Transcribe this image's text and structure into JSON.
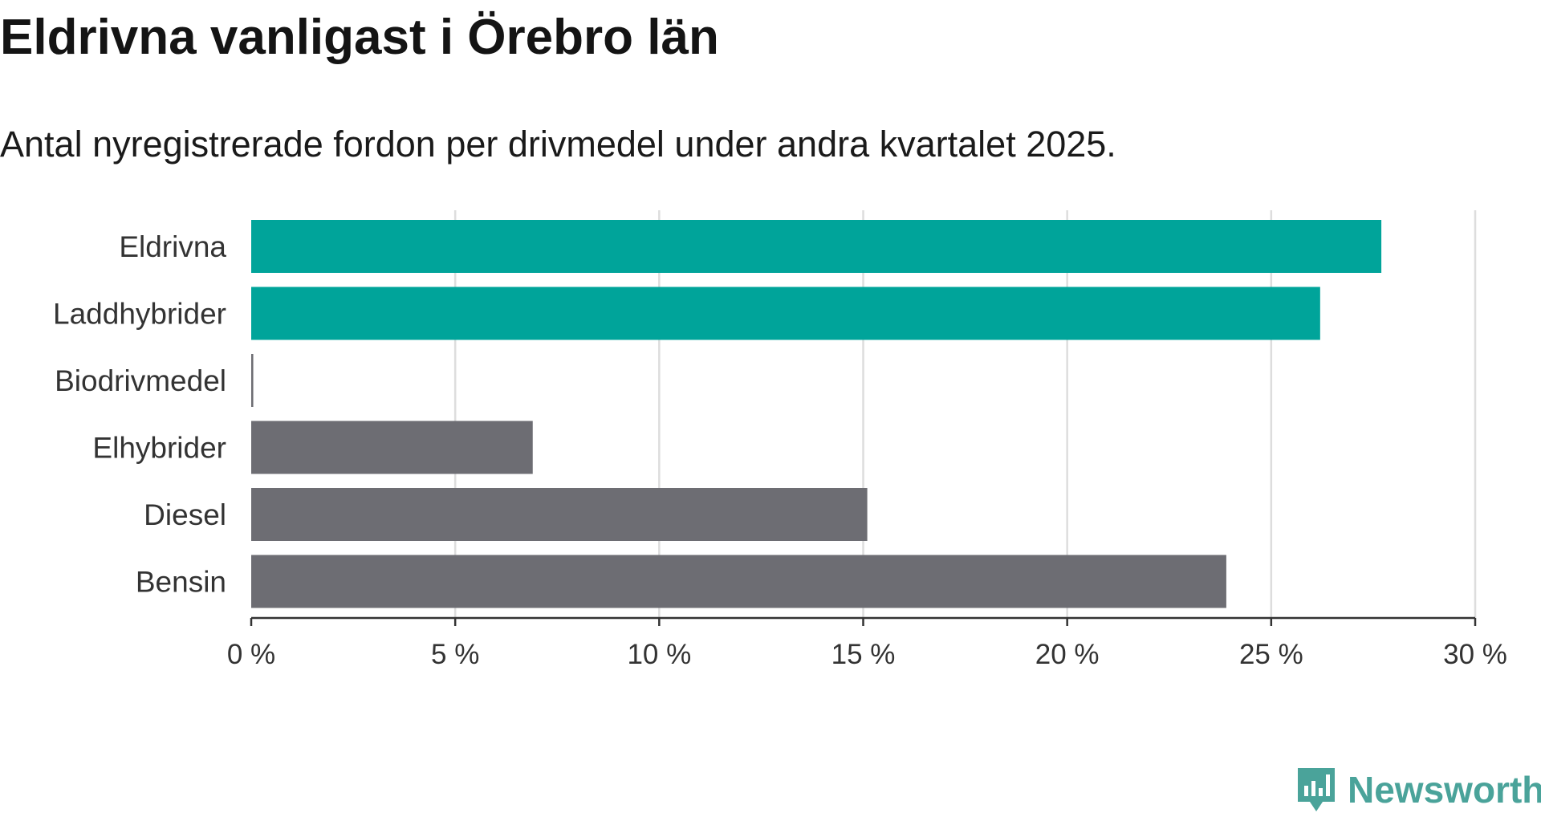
{
  "title": "Eldrivna vanligast i Örebro län",
  "subtitle": "Antal nyregistrerade fordon per drivmedel under andra kvartalet 2025.",
  "brand": {
    "name": "Newsworthy",
    "icon": "newsworthy-logo-icon",
    "color": "#4aa39a"
  },
  "chart_data": {
    "type": "bar",
    "orientation": "horizontal",
    "categories": [
      "Eldrivna",
      "Laddhybrider",
      "Biodrivmedel",
      "Elhybrider",
      "Diesel",
      "Bensin"
    ],
    "values": [
      27.7,
      26.2,
      0.05,
      6.9,
      15.1,
      23.9
    ],
    "highlighted": [
      true,
      true,
      false,
      false,
      false,
      false
    ],
    "colors": {
      "highlight": "#00a49a",
      "default": "#6d6d73"
    },
    "xlim": [
      0,
      30
    ],
    "xticks": [
      0,
      5,
      10,
      15,
      20,
      25,
      30
    ],
    "xtick_labels": [
      "0 %",
      "5 %",
      "10 %",
      "15 %",
      "20 %",
      "25 %",
      "30 %"
    ],
    "grid": true,
    "xlabel": "",
    "ylabel": ""
  }
}
